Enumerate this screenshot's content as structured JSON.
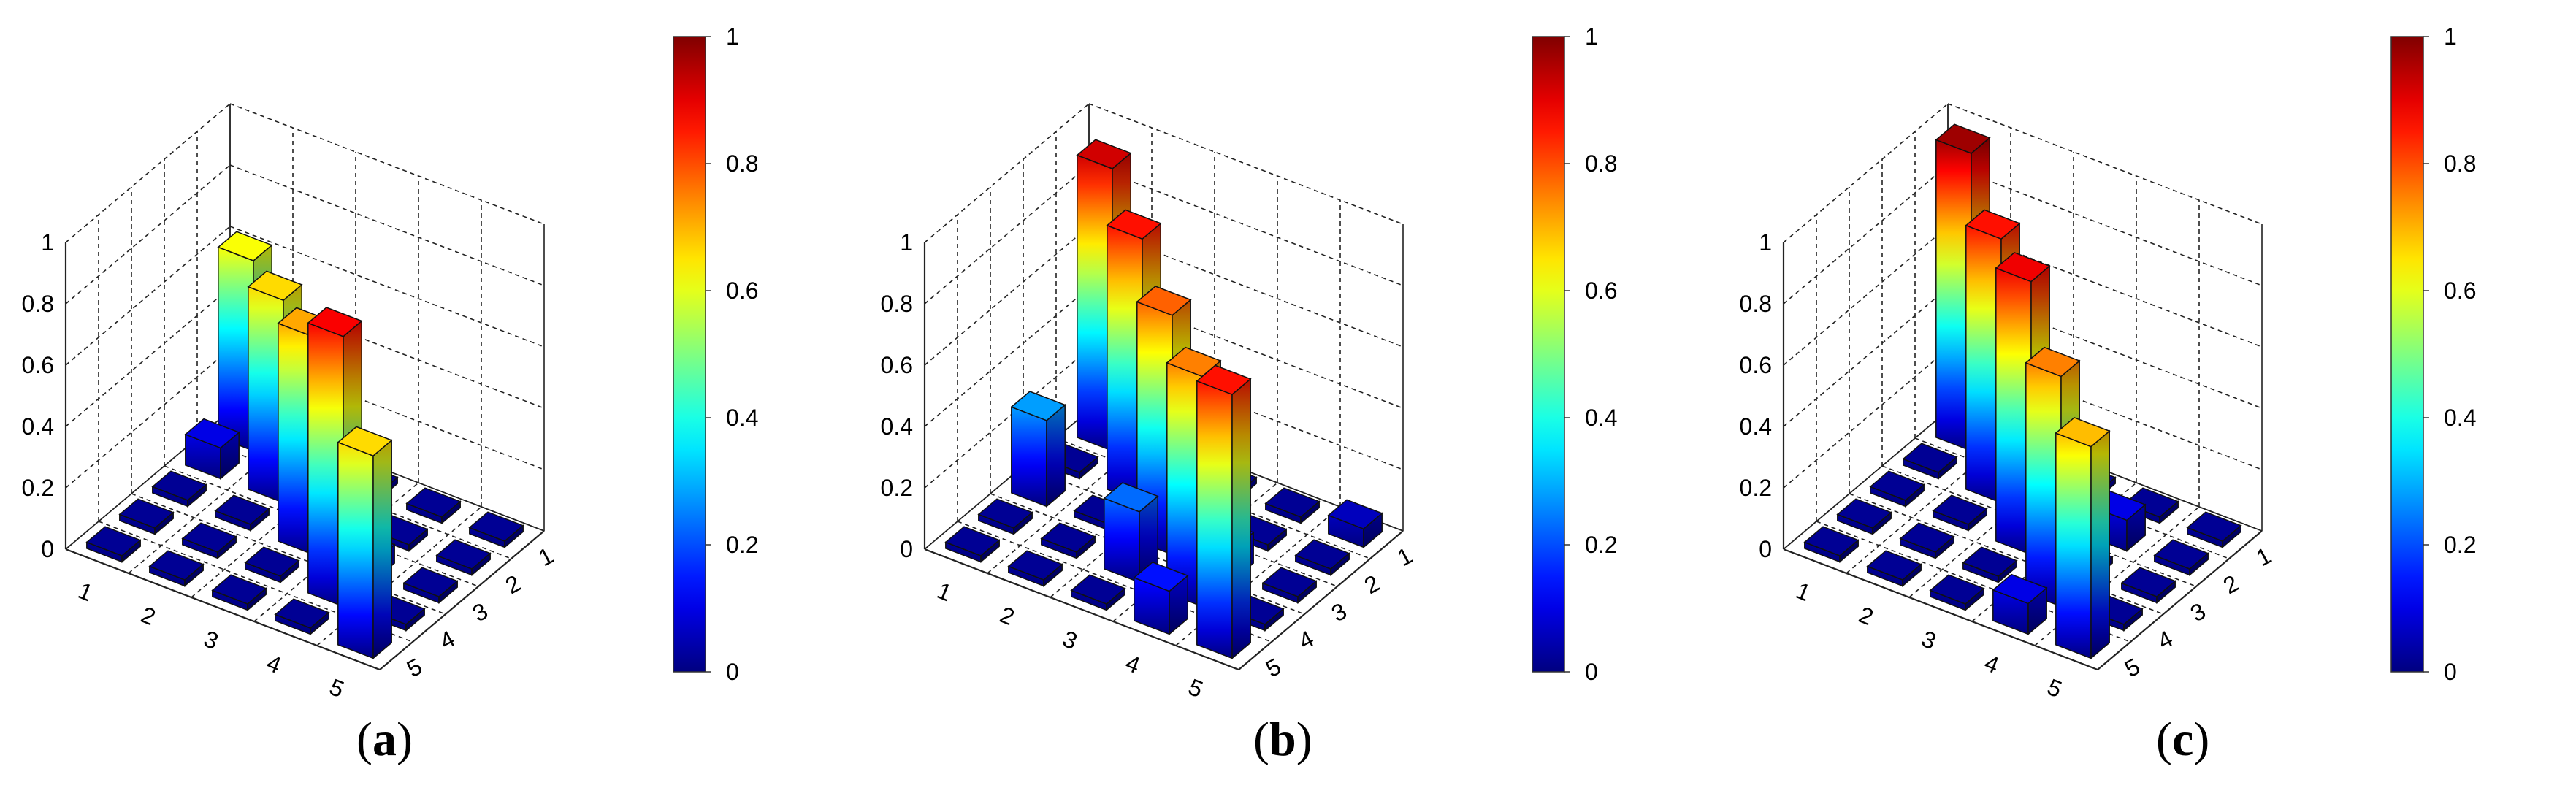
{
  "figure": {
    "panels": [
      {
        "label": "a",
        "caption_open": "(",
        "caption_close": ")"
      },
      {
        "label": "b",
        "caption_open": "(",
        "caption_close": ")"
      },
      {
        "label": "c",
        "caption_open": "(",
        "caption_close": ")"
      }
    ]
  },
  "chart_data": [
    {
      "type": "bar3d",
      "title": "",
      "x_categories": [
        "1",
        "2",
        "3",
        "4",
        "5"
      ],
      "y_categories": [
        "1",
        "2",
        "3",
        "4",
        "5"
      ],
      "z_ticks": [
        "0",
        "0.2",
        "0.4",
        "0.6",
        "0.8",
        "1"
      ],
      "zlim": [
        0,
        1
      ],
      "colorbar": {
        "ticks": [
          "0",
          "0.2",
          "0.4",
          "0.6",
          "0.8",
          "1"
        ],
        "range": [
          0,
          1
        ],
        "colormap": "jet"
      },
      "values": [
        [
          0.62,
          0.02,
          0.02,
          0.02,
          0.02
        ],
        [
          0.1,
          0.66,
          0.21,
          0.02,
          0.02
        ],
        [
          0.02,
          0.02,
          0.71,
          0.06,
          0.02
        ],
        [
          0.02,
          0.02,
          0.02,
          0.88,
          0.02
        ],
        [
          0.02,
          0.02,
          0.02,
          0.02,
          0.66
        ]
      ]
    },
    {
      "type": "bar3d",
      "title": "",
      "x_categories": [
        "1",
        "2",
        "3",
        "4",
        "5"
      ],
      "y_categories": [
        "1",
        "2",
        "3",
        "4",
        "5"
      ],
      "z_ticks": [
        "0",
        "0.2",
        "0.4",
        "0.6",
        "0.8",
        "1"
      ],
      "zlim": [
        0,
        1
      ],
      "colorbar": {
        "ticks": [
          "0",
          "0.2",
          "0.4",
          "0.6",
          "0.8",
          "1"
        ],
        "range": [
          0,
          1
        ],
        "colormap": "jet"
      },
      "values": [
        [
          0.92,
          0.02,
          0.02,
          0.02,
          0.06
        ],
        [
          0.02,
          0.86,
          0.02,
          0.02,
          0.02
        ],
        [
          0.28,
          0.02,
          0.78,
          0.1,
          0.02
        ],
        [
          0.02,
          0.02,
          0.23,
          0.75,
          0.02
        ],
        [
          0.02,
          0.02,
          0.02,
          0.14,
          0.86
        ]
      ]
    },
    {
      "type": "bar3d",
      "title": "",
      "x_categories": [
        "1",
        "2",
        "3",
        "4",
        "5"
      ],
      "y_categories": [
        "1",
        "2",
        "3",
        "4",
        "5"
      ],
      "z_ticks": [
        "0",
        "0.2",
        "0.4",
        "0.6",
        "0.8",
        "1"
      ],
      "zlim": [
        0,
        1
      ],
      "colorbar": {
        "ticks": [
          "0",
          "0.2",
          "0.4",
          "0.6",
          "0.8",
          "1"
        ],
        "range": [
          0,
          1
        ],
        "colormap": "jet"
      },
      "values": [
        [
          0.97,
          0.02,
          0.02,
          0.02,
          0.02
        ],
        [
          0.02,
          0.86,
          0.02,
          0.1,
          0.02
        ],
        [
          0.02,
          0.02,
          0.89,
          0.02,
          0.02
        ],
        [
          0.02,
          0.02,
          0.02,
          0.75,
          0.02
        ],
        [
          0.02,
          0.02,
          0.02,
          0.1,
          0.69
        ]
      ]
    }
  ]
}
